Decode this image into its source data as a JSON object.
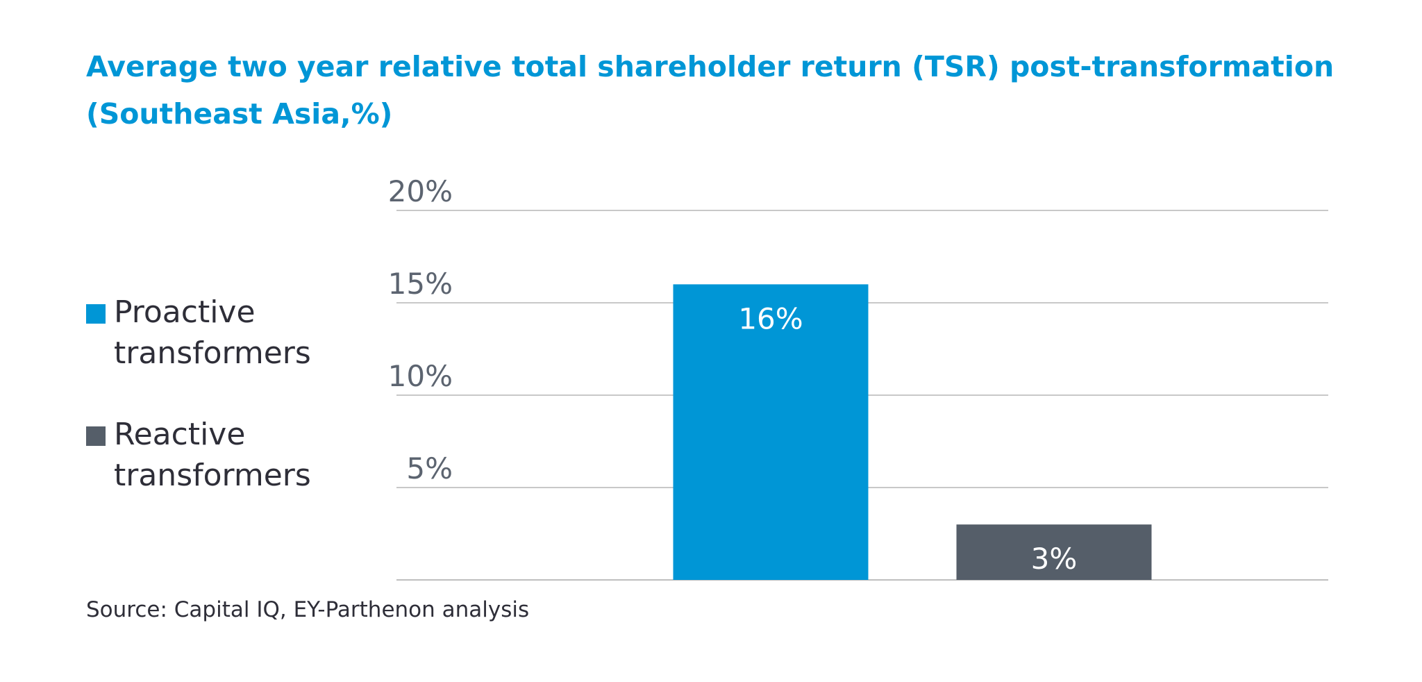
{
  "title": {
    "line1": "Average two year relative total shareholder return (TSR) post-transformation",
    "line2": "(Southeast Asia,%)"
  },
  "legend": {
    "items": [
      {
        "line1": "Proactive",
        "line2": "transformers",
        "color": "#0096d6"
      },
      {
        "line1": "Reactive",
        "line2": "transformers",
        "color": "#555e69"
      }
    ]
  },
  "source": "Source: Capital IQ, EY-Parthenon analysis",
  "chart_data": {
    "type": "bar",
    "title": "Average two year relative total shareholder return (TSR) post-transformation (Southeast Asia,%)",
    "categories": [
      "Proactive transformers",
      "Reactive transformers"
    ],
    "values": [
      16,
      3
    ],
    "value_labels": [
      "16%",
      "3%"
    ],
    "colors": [
      "#0096d6",
      "#555e69"
    ],
    "ylim": [
      0,
      20
    ],
    "yticks": [
      5,
      10,
      15,
      20
    ],
    "ytick_labels": [
      "5%",
      "10%",
      "15%",
      "20%"
    ],
    "xlabel": "",
    "ylabel": "",
    "grid": true,
    "legend_position": "left"
  }
}
